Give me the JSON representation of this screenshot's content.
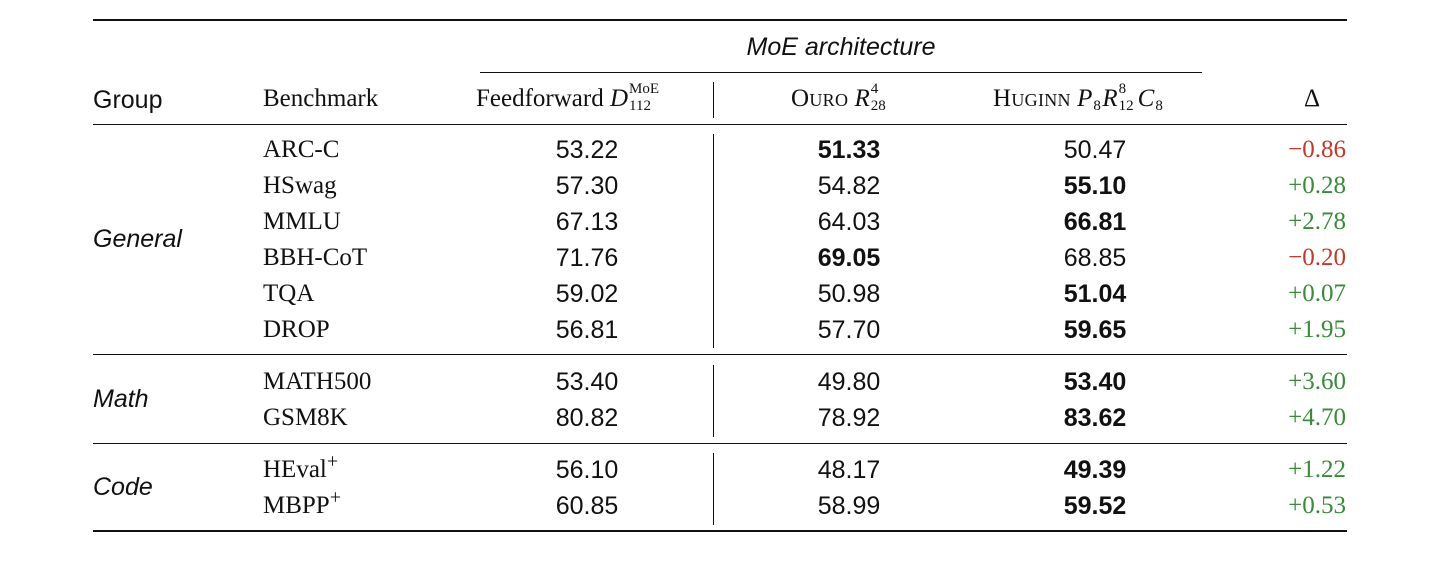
{
  "header": {
    "spanner": "MoE architecture",
    "group": "Group",
    "benchmark": "Benchmark",
    "feedforward": {
      "name": "Feedforward",
      "sym": "D",
      "sup": "MoE",
      "sub": "112"
    },
    "ouro": {
      "name": "Ouro",
      "sym": "R",
      "sup": "4",
      "sub": "28"
    },
    "huginn": {
      "name": "Huginn",
      "p": "P",
      "p_sub": "8",
      "r": "R",
      "r_sup": "8",
      "r_sub": "12",
      "c": "C",
      "c_sub": "8"
    },
    "delta": "Δ"
  },
  "colors": {
    "positive": "#3a8a3a",
    "negative": "#c0392b"
  },
  "groups": [
    {
      "name": "General",
      "rows": [
        {
          "benchmark": "ARC-C",
          "feedforward": "53.22",
          "ouro": "51.33",
          "huginn": "50.47",
          "delta": "−0.86",
          "best": "ouro",
          "sign": "neg"
        },
        {
          "benchmark": "HSwag",
          "feedforward": "57.30",
          "ouro": "54.82",
          "huginn": "55.10",
          "delta": "+0.28",
          "best": "huginn",
          "sign": "pos"
        },
        {
          "benchmark": "MMLU",
          "feedforward": "67.13",
          "ouro": "64.03",
          "huginn": "66.81",
          "delta": "+2.78",
          "best": "huginn",
          "sign": "pos"
        },
        {
          "benchmark": "BBH-CoT",
          "feedforward": "71.76",
          "ouro": "69.05",
          "huginn": "68.85",
          "delta": "−0.20",
          "best": "ouro",
          "sign": "neg"
        },
        {
          "benchmark": "TQA",
          "feedforward": "59.02",
          "ouro": "50.98",
          "huginn": "51.04",
          "delta": "+0.07",
          "best": "huginn",
          "sign": "pos"
        },
        {
          "benchmark": "DROP",
          "feedforward": "56.81",
          "ouro": "57.70",
          "huginn": "59.65",
          "delta": "+1.95",
          "best": "huginn",
          "sign": "pos"
        }
      ]
    },
    {
      "name": "Math",
      "rows": [
        {
          "benchmark": "MATH500",
          "feedforward": "53.40",
          "ouro": "49.80",
          "huginn": "53.40",
          "delta": "+3.60",
          "best": "huginn",
          "sign": "pos"
        },
        {
          "benchmark": "GSM8K",
          "feedforward": "80.82",
          "ouro": "78.92",
          "huginn": "83.62",
          "delta": "+4.70",
          "best": "huginn",
          "sign": "pos"
        }
      ]
    },
    {
      "name": "Code",
      "rows": [
        {
          "benchmark": "HEval",
          "benchmark_sup": "+",
          "feedforward": "56.10",
          "ouro": "48.17",
          "huginn": "49.39",
          "delta": "+1.22",
          "best": "huginn",
          "sign": "pos"
        },
        {
          "benchmark": "MBPP",
          "benchmark_sup": "+",
          "feedforward": "60.85",
          "ouro": "58.99",
          "huginn": "59.52",
          "delta": "+0.53",
          "best": "huginn",
          "sign": "pos"
        }
      ]
    }
  ]
}
